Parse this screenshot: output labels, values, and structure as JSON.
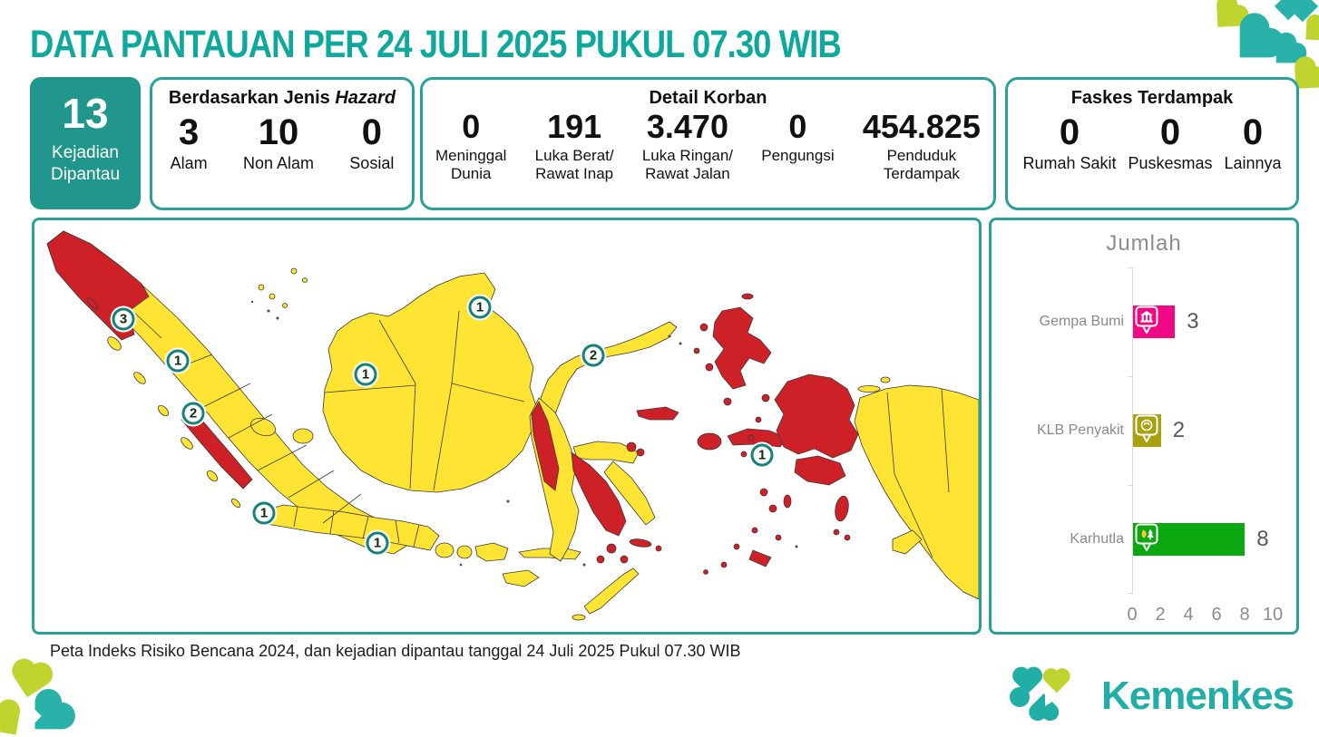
{
  "theme": {
    "accent_teal": "#2AA198",
    "title_teal": "#0FA89D",
    "kejadian_box_bg": "#20968C",
    "logo_teal": "#21AEA6",
    "logo_lime": "#BFD42F"
  },
  "header": {
    "title": "DATA PANTAUAN PER 24 JULI 2025 PUKUL 07.30 WIB"
  },
  "summary": {
    "kejadian": {
      "value": "13",
      "label": "Kejadian\nDipantau"
    },
    "hazard": {
      "title_regular": "Berdasarkan Jenis ",
      "title_italic": "Hazard",
      "items": [
        {
          "value": "3",
          "label": "Alam"
        },
        {
          "value": "10",
          "label": "Non Alam"
        },
        {
          "value": "0",
          "label": "Sosial"
        }
      ]
    },
    "korban": {
      "title": "Detail Korban",
      "items": [
        {
          "value": "0",
          "label": "Meninggal\nDunia"
        },
        {
          "value": "191",
          "label": "Luka Berat/\nRawat Inap"
        },
        {
          "value": "3.470",
          "label": "Luka Ringan/\nRawat Jalan"
        },
        {
          "value": "0",
          "label": "Pengungsi"
        },
        {
          "value": "454.825",
          "label": "Penduduk\nTerdampak"
        }
      ]
    },
    "faskes": {
      "title": "Faskes Terdampak",
      "items": [
        {
          "value": "0",
          "label": "Rumah Sakit"
        },
        {
          "value": "0",
          "label": "Puskesmas"
        },
        {
          "value": "0",
          "label": "Lainnya"
        }
      ]
    }
  },
  "map": {
    "caption": "Peta Indeks Risiko Bencana 2024, dan kejadian dipantau tanggal 24 Juli 2025 Pukul 07.30 WIB",
    "colors": {
      "risk_high": "#CE2127",
      "risk_medium": "#FFE433",
      "boundary": "#3A3A3A"
    },
    "badges": [
      {
        "value": "3"
      },
      {
        "value": "1"
      },
      {
        "value": "2"
      },
      {
        "value": "1"
      },
      {
        "value": "1"
      },
      {
        "value": "1"
      },
      {
        "value": "1"
      },
      {
        "value": "2"
      },
      {
        "value": "1"
      }
    ]
  },
  "chart_data": {
    "type": "bar",
    "orientation": "horizontal",
    "title": "Jumlah",
    "categories": [
      "Gempa Bumi",
      "KLB Penyakit",
      "Karhutla"
    ],
    "values": [
      3,
      2,
      8
    ],
    "colors": [
      "#F00884",
      "#A9A00E",
      "#0CA811"
    ],
    "icons": [
      "earthquake-building-icon",
      "disease-outbreak-icon",
      "forest-fire-icon"
    ],
    "xlim": [
      0,
      10
    ],
    "ticks": [
      0,
      2,
      4,
      6,
      8,
      10
    ],
    "xlabel": "",
    "ylabel": "",
    "legend": "none",
    "grid": "off"
  },
  "footer": {
    "brand": "Kemenkes"
  }
}
